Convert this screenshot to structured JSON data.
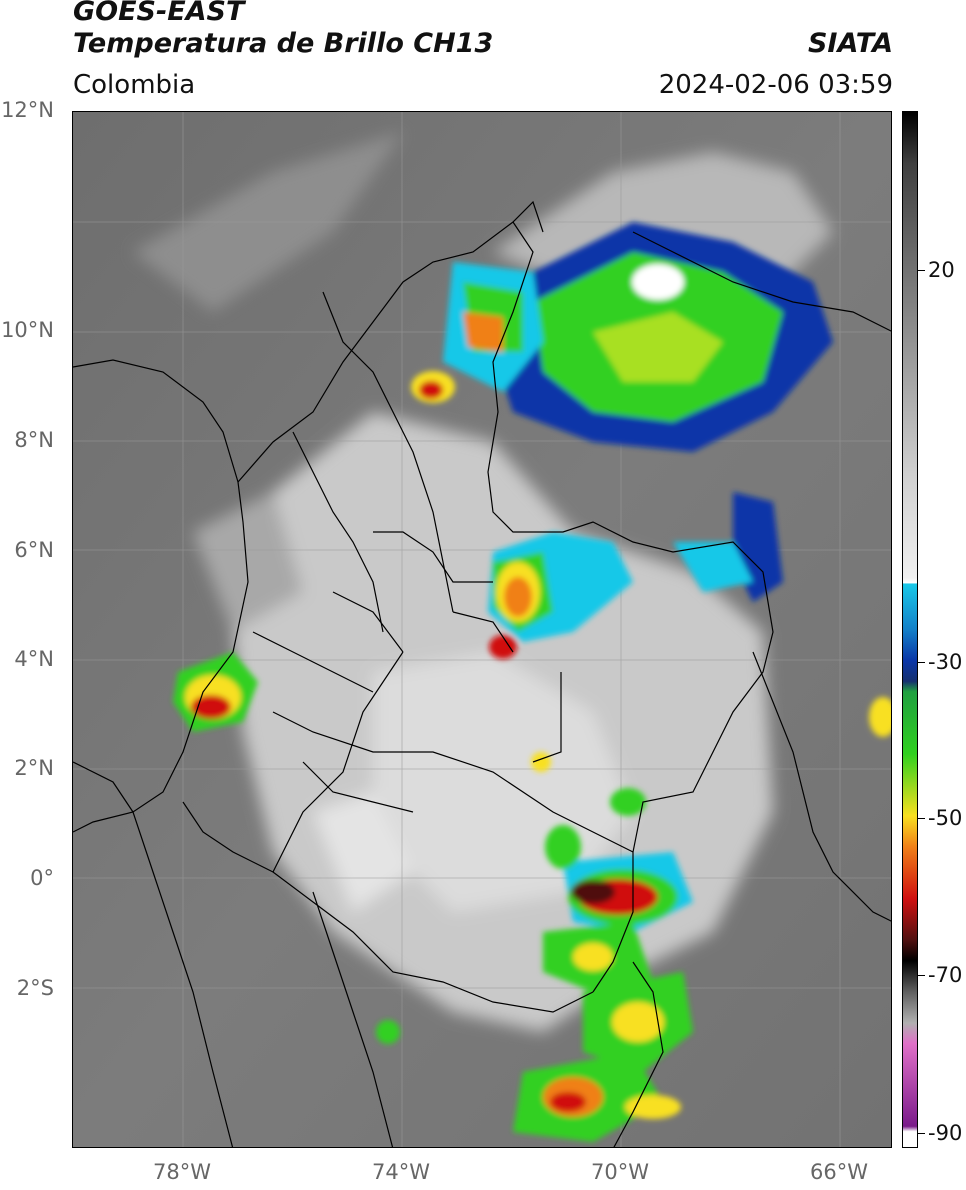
{
  "header": {
    "satellite": "GOES-EAST",
    "product": "Temperatura de Brillo CH13",
    "region": "Colombia",
    "organization": "SIATA",
    "datetime": "2024-02-06 03:59"
  },
  "axes": {
    "lat_labels": [
      "12°N",
      "10°N",
      "8°N",
      "6°N",
      "4°N",
      "2°N",
      "0°",
      "2°S"
    ],
    "lon_labels": [
      "78°W",
      "74°W",
      "70°W",
      "66°W"
    ]
  },
  "colorbar": {
    "ticks": [
      "20",
      "-30",
      "-50",
      "-70",
      "-90"
    ],
    "colors": {
      "white": "#ffffff",
      "cyan": "#19c8e8",
      "blue": "#0a36a8",
      "green": "#30d020",
      "yellow": "#f8e020",
      "orange": "#f08018",
      "red": "#d01010",
      "dark_red": "#501010",
      "black": "#000000",
      "pink": "#e070c8",
      "purple": "#7a1a8a"
    }
  }
}
